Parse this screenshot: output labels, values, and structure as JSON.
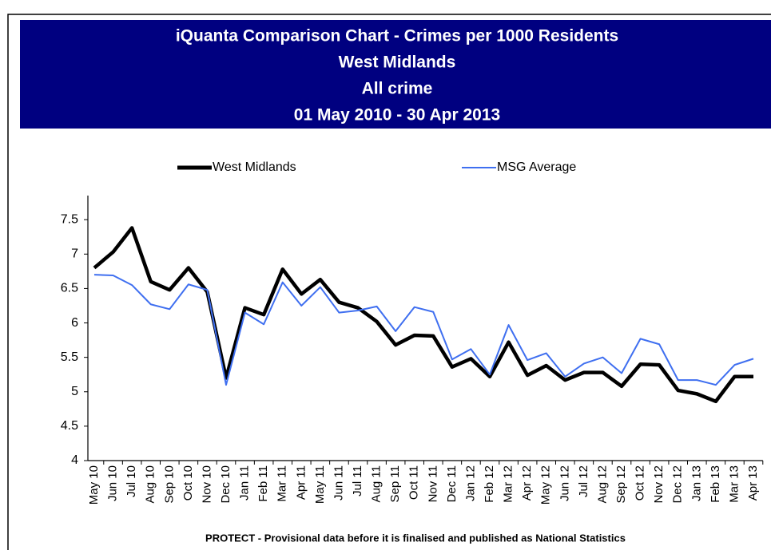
{
  "chart_data": {
    "type": "line",
    "title_lines": [
      "iQuanta Comparison Chart - Crimes per 1000 Residents",
      "West Midlands",
      "All crime",
      "01 May 2010 - 30 Apr 2013"
    ],
    "footnote": "PROTECT - Provisional data before it is finalised and published as National Statistics",
    "categories": [
      "May 10",
      "Jun 10",
      "Jul 10",
      "Aug 10",
      "Sep 10",
      "Oct 10",
      "Nov 10",
      "Dec 10",
      "Jan 11",
      "Feb 11",
      "Mar 11",
      "Apr 11",
      "May 11",
      "Jun 11",
      "Jul 11",
      "Aug 11",
      "Sep 11",
      "Oct 11",
      "Nov 11",
      "Dec 11",
      "Jan 12",
      "Feb 12",
      "Mar 12",
      "Apr 12",
      "May 12",
      "Jun 12",
      "Jul 12",
      "Aug 12",
      "Sep 12",
      "Oct 12",
      "Nov 12",
      "Dec 12",
      "Jan 13",
      "Feb 13",
      "Mar 13",
      "Apr 13"
    ],
    "series": [
      {
        "name": "West Midlands",
        "color": "#000000",
        "values": [
          6.8,
          7.03,
          7.38,
          6.6,
          6.48,
          6.8,
          6.45,
          5.2,
          6.22,
          6.12,
          6.78,
          6.42,
          6.63,
          6.3,
          6.22,
          6.02,
          5.68,
          5.82,
          5.81,
          5.36,
          5.48,
          5.22,
          5.72,
          5.24,
          5.38,
          5.17,
          5.28,
          5.28,
          5.08,
          5.4,
          5.39,
          5.02,
          4.97,
          4.86,
          5.22,
          5.22
        ]
      },
      {
        "name": "MSG Average",
        "color": "#3f6ff0",
        "values": [
          6.7,
          6.69,
          6.55,
          6.27,
          6.2,
          6.56,
          6.48,
          5.1,
          6.15,
          5.98,
          6.59,
          6.25,
          6.52,
          6.15,
          6.18,
          6.24,
          5.88,
          6.23,
          6.16,
          5.47,
          5.62,
          5.25,
          5.97,
          5.46,
          5.56,
          5.22,
          5.41,
          5.5,
          5.27,
          5.77,
          5.69,
          5.17,
          5.17,
          5.1,
          5.39,
          5.48
        ]
      }
    ],
    "ylim": [
      4,
      7.85
    ],
    "yticks": [
      4,
      4.5,
      5,
      5.5,
      6,
      6.5,
      7,
      7.5
    ],
    "grid": false
  }
}
